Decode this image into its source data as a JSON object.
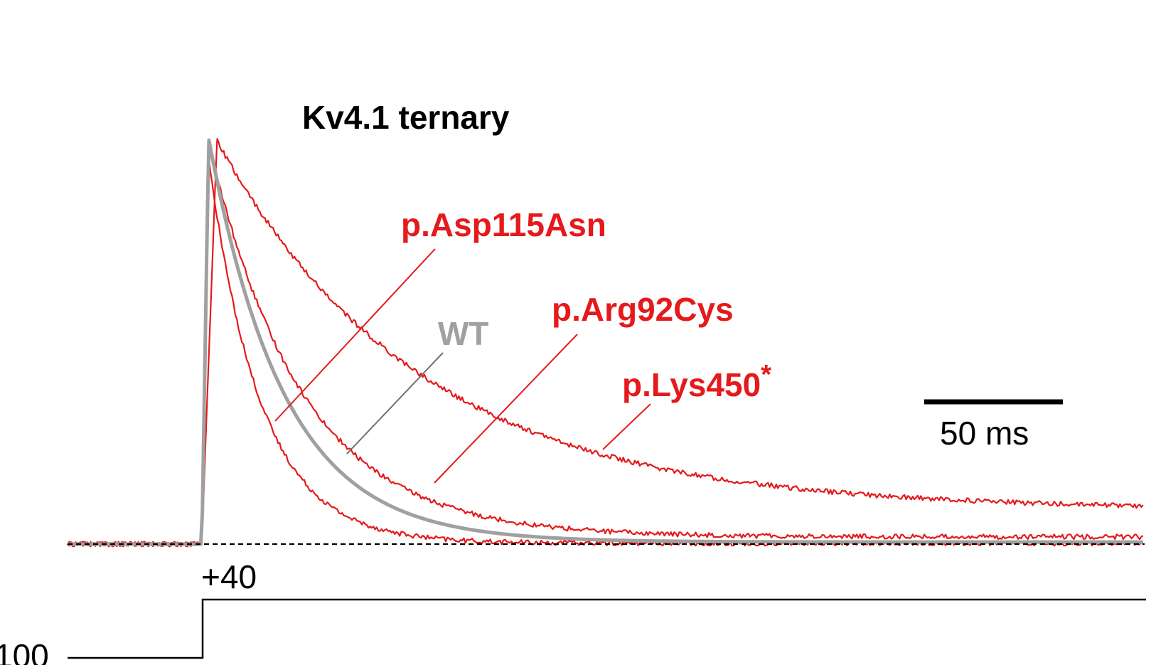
{
  "colors": {
    "mutant": "#e41a1c",
    "wt": "#a0a0a0",
    "wt_leader": "#707070",
    "ink": "#000000"
  },
  "chart_data": {
    "type": "line",
    "title": "Kv4.1 ternary",
    "xlabel": "",
    "ylabel": "",
    "x_units": "ms",
    "xlim": [
      -98,
      688
    ],
    "ylim": [
      0,
      1
    ],
    "step_onset_ms": 0,
    "baseline_dashed": true,
    "grid": false,
    "scale_bar": {
      "length": 50,
      "label": "50 ms"
    },
    "series": [
      {
        "name": "WT",
        "color": "#a0a0a0",
        "peak_ms": 5,
        "peak": 1.0,
        "tau_ms": 55,
        "steady": 0.005
      },
      {
        "name": "p.Asp115Asn",
        "color": "#e41a1c",
        "peak_ms": 5,
        "peak": 0.95,
        "tau_ms": 38,
        "steady": 0.002
      },
      {
        "name": "p.Arg92Cys",
        "color": "#e41a1c",
        "peak_ms": 5,
        "peak": 0.99,
        "tau_ms": 68,
        "steady": 0.018
      },
      {
        "name": "p.Lys450",
        "name_suffix": "*",
        "color": "#e41a1c",
        "peak_ms": 11,
        "peak": 0.995,
        "tau_ms": 148,
        "steady": 0.085
      }
    ],
    "voltage_protocol": {
      "step_label": "+40",
      "holding_label": "100"
    }
  }
}
